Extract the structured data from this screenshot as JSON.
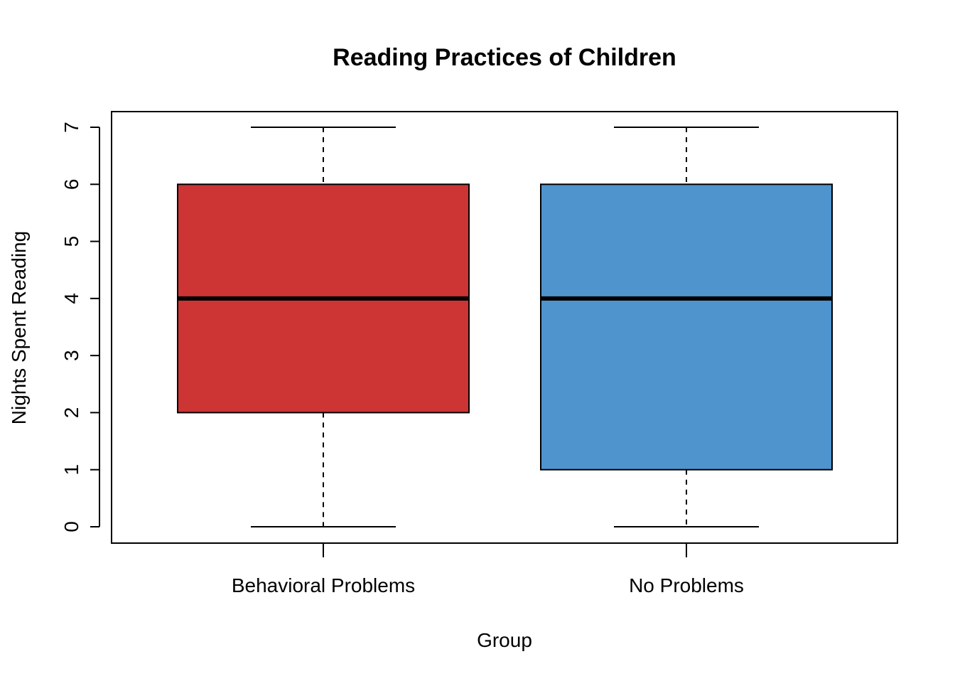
{
  "chart_data": {
    "type": "boxplot",
    "title": "Reading Practices of Children",
    "xlabel": "Group",
    "ylabel": "Nights Spent Reading",
    "ylim": [
      0,
      7
    ],
    "yticks": [
      "0",
      "1",
      "2",
      "3",
      "4",
      "5",
      "6",
      "7"
    ],
    "grid": false,
    "legend": "none",
    "categories": [
      "Behavioral Problems",
      "No Problems"
    ],
    "boxes": [
      {
        "category": "Behavioral Problems",
        "whisker_low": 0,
        "q1": 2,
        "median": 4,
        "q3": 6,
        "whisker_high": 7,
        "color": "#CD3434"
      },
      {
        "category": "No Problems",
        "whisker_low": 0,
        "q1": 1,
        "median": 4,
        "q3": 6,
        "whisker_high": 7,
        "color": "#4F94CD"
      }
    ]
  }
}
